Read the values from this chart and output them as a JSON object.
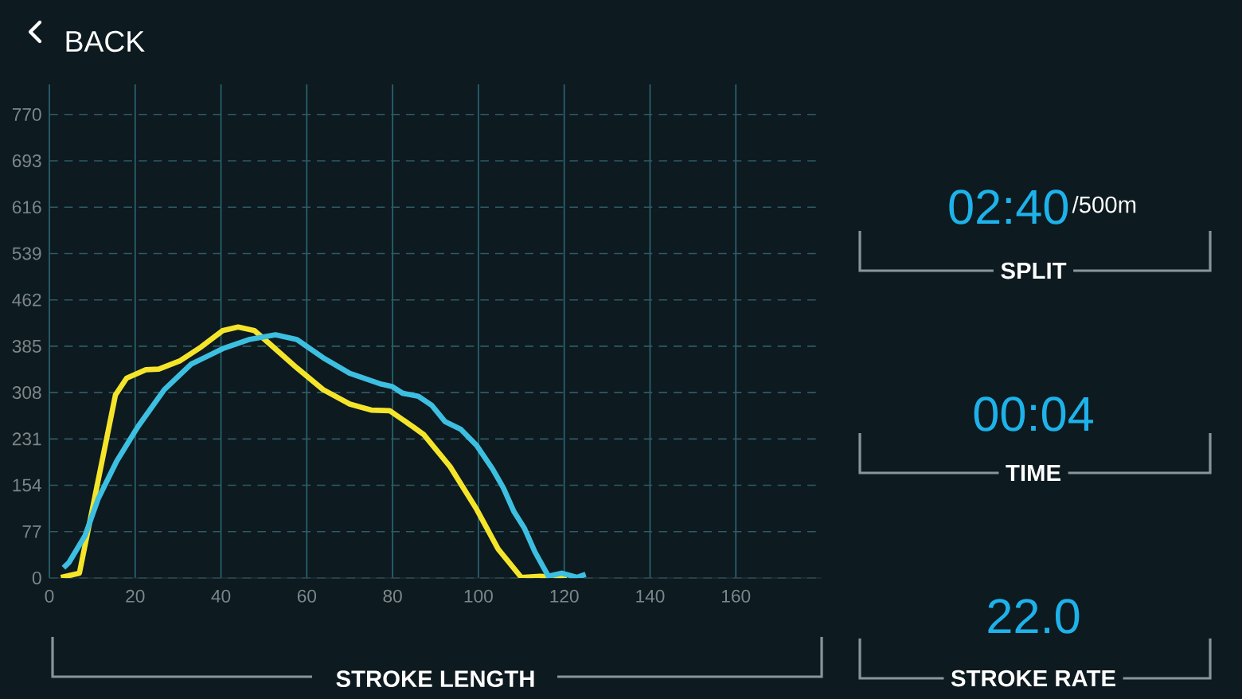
{
  "chart_data": [
    {
      "type": "line",
      "xlabel": "STROKE LENGTH",
      "annotations": [
        "BACK"
      ],
      "xlim": [
        0,
        180
      ],
      "ylim": [
        0,
        820
      ],
      "xticks": [
        0,
        20,
        40,
        60,
        80,
        100,
        120,
        140,
        160
      ],
      "yticks": [
        0,
        77,
        154,
        231,
        308,
        385,
        462,
        539,
        616,
        693,
        770
      ],
      "grid": true,
      "series": [
        {
          "color": "#f5e52a",
          "x": [
            2.7,
            7,
            15.4,
            18,
            22.5,
            25.5,
            30.5,
            35.4,
            40.4,
            44,
            47.8,
            51.5,
            57.7,
            63.8,
            70,
            75,
            79.3,
            84.8,
            87.3,
            93.4,
            99.6,
            104.6,
            110,
            114.4,
            120.6
          ],
          "values": [
            1,
            8,
            304,
            332,
            346,
            347,
            361,
            384,
            411,
            417,
            411,
            388,
            349,
            313,
            289,
            279,
            278,
            251,
            238,
            185,
            114,
            48,
            1,
            3,
            0
          ]
        },
        {
          "color": "#3cbfe0",
          "x": [
            3.3,
            4.6,
            8.3,
            11.4,
            15.7,
            20.6,
            26.8,
            33,
            40.4,
            46.5,
            52.7,
            57.7,
            63.8,
            70,
            77.4,
            79.9,
            82.3,
            86,
            89.1,
            92.2,
            95.9,
            99.6,
            103.3,
            105.8,
            108.3,
            110.7,
            113.2,
            116.3,
            119.4,
            123,
            125
          ],
          "values": [
            17,
            26,
            70,
            132,
            194,
            251,
            313,
            355,
            381,
            396,
            404,
            396,
            366,
            340,
            322,
            318,
            307,
            302,
            287,
            260,
            247,
            220,
            181,
            150,
            110,
            83,
            43,
            3,
            8,
            1,
            6
          ]
        }
      ]
    },
    {
      "type": "other",
      "annotations": [
        "02:40",
        "/500m",
        "SPLIT",
        "00:04",
        "TIME",
        "22.0",
        "STROKE RATE"
      ]
    }
  ]
}
